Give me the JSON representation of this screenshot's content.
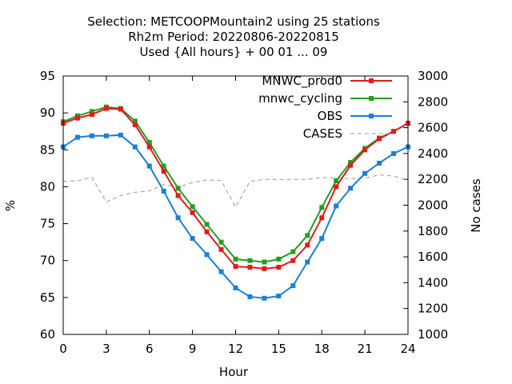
{
  "chart_data": {
    "type": "line",
    "title_lines": [
      "Selection: METCOOPMountain2 using    25 stations",
      "Rh2m   Period: 20220806-20220815",
      "Used {All hours} + 00 01 ... 09"
    ],
    "xlabel": "Hour",
    "ylabel": "%",
    "y2label": "No cases",
    "xlim": [
      0,
      24
    ],
    "ylim": [
      60,
      95
    ],
    "y2lim": [
      1000,
      3000
    ],
    "xticks": [
      "0",
      "3",
      "6",
      "9",
      "12",
      "15",
      "18",
      "21",
      "24"
    ],
    "yticks": [
      "60",
      "65",
      "70",
      "75",
      "80",
      "85",
      "90",
      "95"
    ],
    "y2ticks": [
      "1000",
      "1200",
      "1400",
      "1600",
      "1800",
      "2000",
      "2200",
      "2400",
      "2600",
      "2800",
      "3000"
    ],
    "grid": false,
    "legend_position": "top-right",
    "x": [
      0,
      1,
      2,
      3,
      4,
      5,
      6,
      7,
      8,
      9,
      10,
      11,
      12,
      13,
      14,
      15,
      16,
      17,
      18,
      19,
      20,
      21,
      22,
      23,
      24
    ],
    "series": [
      {
        "name": "MNWC_prod0",
        "color": "#e41a1c",
        "axis": "y",
        "marker": "square",
        "values": [
          88.6,
          89.3,
          89.8,
          90.6,
          90.5,
          88.4,
          85.4,
          82.1,
          78.8,
          76.5,
          73.9,
          71.5,
          69.2,
          69.1,
          68.9,
          69.1,
          70.0,
          72.1,
          75.8,
          80.0,
          82.9,
          85.0,
          86.5,
          87.5,
          88.6
        ]
      },
      {
        "name": "mnwc_cycling",
        "color": "#1fa01f",
        "axis": "y",
        "marker": "square",
        "values": [
          88.8,
          89.6,
          90.2,
          90.8,
          90.6,
          88.9,
          86.0,
          82.8,
          79.8,
          77.3,
          74.9,
          72.5,
          70.2,
          70.0,
          69.8,
          70.2,
          71.2,
          73.4,
          77.2,
          80.8,
          83.3,
          85.2,
          86.6,
          87.5,
          88.6
        ]
      },
      {
        "name": "OBS",
        "color": "#1a7fd6",
        "axis": "y",
        "marker": "square",
        "values": [
          85.4,
          86.7,
          86.9,
          86.9,
          87.0,
          85.4,
          82.8,
          79.4,
          75.8,
          73.0,
          70.8,
          68.5,
          66.3,
          65.1,
          64.9,
          65.2,
          66.6,
          69.8,
          73.0,
          77.4,
          79.8,
          81.8,
          83.2,
          84.5,
          85.4
        ]
      },
      {
        "name": "CASES",
        "color": "#999999",
        "axis": "y2",
        "dashed": true,
        "values": [
          2185,
          2190,
          2215,
          2025,
          2075,
          2100,
          2110,
          2160,
          2140,
          2175,
          2195,
          2190,
          1985,
          2185,
          2200,
          2200,
          2200,
          2200,
          2215,
          2210,
          2205,
          2210,
          2235,
          2225,
          2190
        ]
      }
    ]
  }
}
